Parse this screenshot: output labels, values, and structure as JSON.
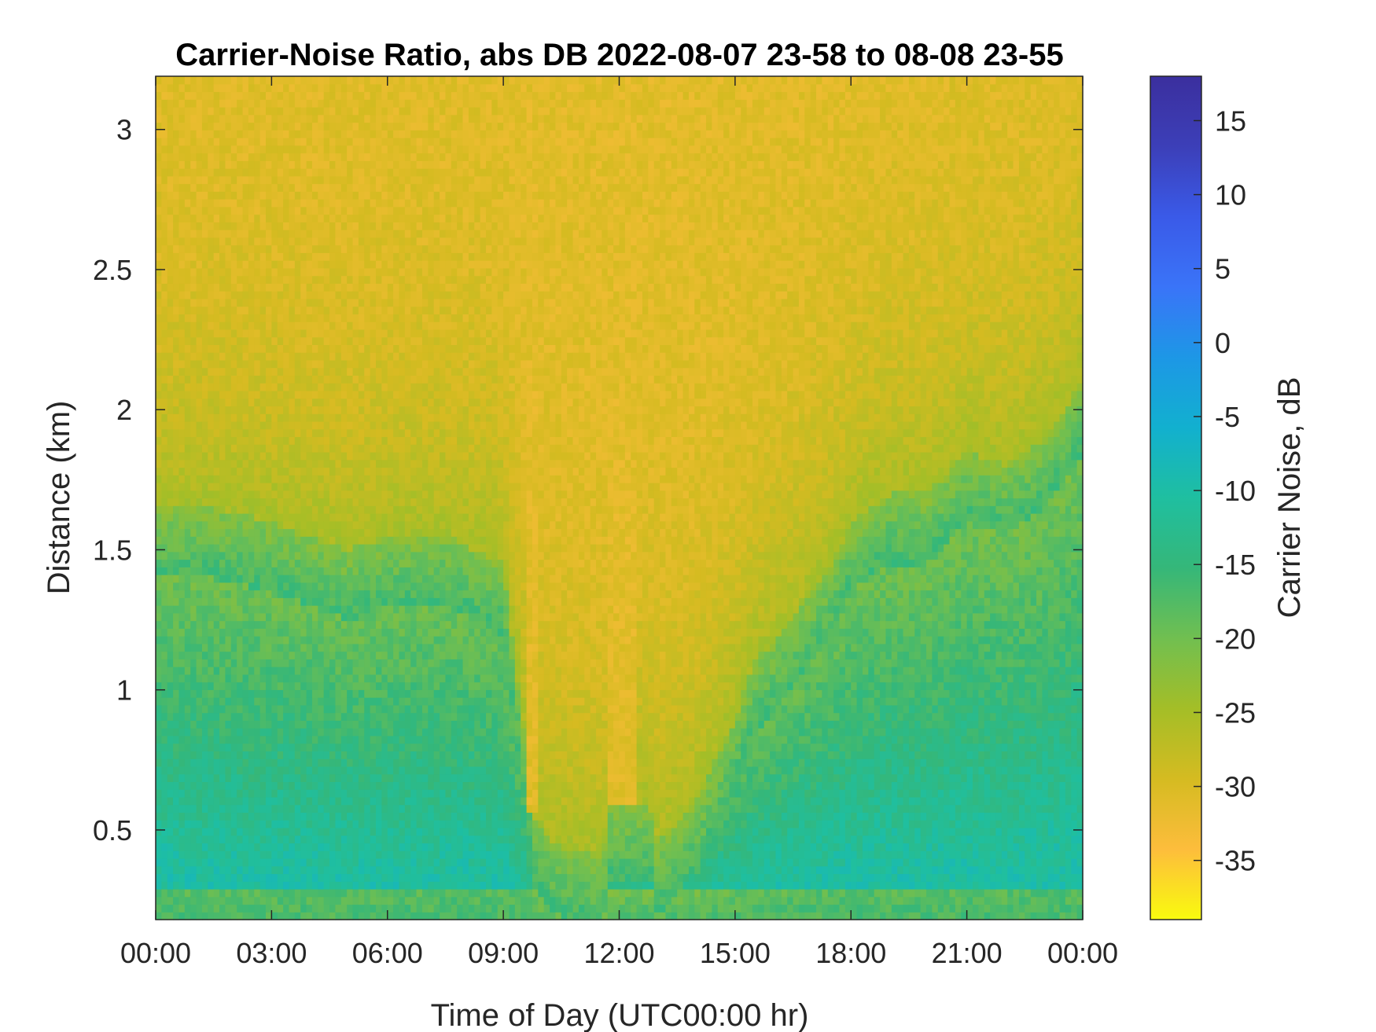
{
  "chart_data": {
    "type": "heatmap",
    "title": "Carrier-Noise Ratio, abs DB 2022-08-07 23-58 to 08-08 23-55",
    "xlabel": "Time of Day (UTC00:00 hr)",
    "ylabel": "Distance (km)",
    "x_ticks": [
      "00:00",
      "03:00",
      "06:00",
      "09:00",
      "12:00",
      "15:00",
      "18:00",
      "21:00",
      "00:00"
    ],
    "xlim_hours": [
      0,
      24
    ],
    "y_ticks": [
      {
        "value": 0.5,
        "label": "0.5"
      },
      {
        "value": 1,
        "label": "1"
      },
      {
        "value": 1.5,
        "label": "1.5"
      },
      {
        "value": 2,
        "label": "2"
      },
      {
        "value": 2.5,
        "label": "2.5"
      },
      {
        "value": 3,
        "label": "3"
      }
    ],
    "ylim": [
      0.18,
      3.19
    ],
    "colorbar": {
      "label": "Carrier Noise, dB",
      "range": [
        -39,
        18
      ],
      "ticks": [
        {
          "value": 15,
          "label": "15"
        },
        {
          "value": 10,
          "label": "10"
        },
        {
          "value": 5,
          "label": "5"
        },
        {
          "value": 0,
          "label": "0"
        },
        {
          "value": -5,
          "label": "-5"
        },
        {
          "value": -10,
          "label": "-10"
        },
        {
          "value": -15,
          "label": "-15"
        },
        {
          "value": -20,
          "label": "-20"
        },
        {
          "value": -25,
          "label": "-25"
        },
        {
          "value": -30,
          "label": "-30"
        },
        {
          "value": -35,
          "label": "-35"
        }
      ],
      "colors": [
        "#f9fb0e",
        "#fdbd3c",
        "#d5bb21",
        "#a4be27",
        "#71bf50",
        "#35b779",
        "#1fbfa0",
        "#12b0cf",
        "#1d97e6",
        "#3a74f8",
        "#3a5ae8",
        "#3c3fb8",
        "#3b2f9e"
      ]
    },
    "grid": false,
    "background_db": -31,
    "features": [
      {
        "kind": "boundary_layer",
        "description_hours": [
          0,
          24
        ],
        "top_km": [
          [
            0,
            1.65
          ],
          [
            1.5,
            1.65
          ],
          [
            3,
            1.6
          ],
          [
            5,
            1.5
          ],
          [
            6,
            1.55
          ],
          [
            7.5,
            1.55
          ],
          [
            9,
            1.45
          ],
          [
            9.8,
            0.55
          ],
          [
            10.3,
            0.45
          ],
          [
            11.6,
            0.4
          ],
          [
            11.7,
            0.58
          ],
          [
            12.8,
            0.58
          ],
          [
            13,
            0.45
          ],
          [
            14,
            0.6
          ],
          [
            15,
            0.9
          ],
          [
            15.5,
            1.1
          ],
          [
            16.5,
            1.25
          ],
          [
            17.5,
            1.45
          ],
          [
            18,
            1.6
          ],
          [
            19,
            1.7
          ],
          [
            20,
            1.7
          ],
          [
            21,
            1.85
          ],
          [
            22,
            1.8
          ],
          [
            23,
            1.9
          ],
          [
            24,
            2.1
          ]
        ],
        "core_db": -11
      },
      {
        "kind": "clear_column",
        "hours": [
          9.65,
          9.95
        ],
        "from_km": 0.55,
        "db": -31
      },
      {
        "kind": "clear_column",
        "hours": [
          11.7,
          12.5
        ],
        "from_km": 0.58,
        "db": -31
      }
    ]
  }
}
